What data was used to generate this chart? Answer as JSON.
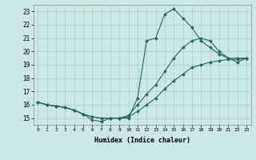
{
  "xlabel": "Humidex (Indice chaleur)",
  "background_color": "#cce8e4",
  "grid_color": "#aaccc8",
  "line_color": "#206860",
  "xlim": [
    -0.5,
    23.5
  ],
  "ylim": [
    14.5,
    23.5
  ],
  "yticks": [
    15,
    16,
    17,
    18,
    19,
    20,
    21,
    22,
    23
  ],
  "xticks": [
    0,
    1,
    2,
    3,
    4,
    5,
    6,
    7,
    8,
    9,
    10,
    11,
    12,
    13,
    14,
    15,
    16,
    17,
    18,
    19,
    20,
    21,
    22,
    23
  ],
  "line1_x": [
    0,
    1,
    2,
    3,
    4,
    5,
    6,
    7,
    8,
    9,
    10,
    11,
    12,
    13,
    14,
    15,
    16,
    17,
    18,
    19,
    20,
    21,
    22,
    23
  ],
  "line1_y": [
    16.2,
    16.0,
    15.9,
    15.8,
    15.6,
    15.3,
    14.85,
    14.75,
    15.0,
    15.0,
    15.0,
    16.5,
    20.8,
    21.0,
    22.8,
    23.2,
    22.5,
    21.8,
    20.8,
    20.3,
    19.8,
    19.5,
    19.5,
    19.5
  ],
  "line2_x": [
    0,
    1,
    2,
    3,
    4,
    5,
    6,
    7,
    8,
    9,
    10,
    11,
    12,
    13,
    14,
    15,
    16,
    17,
    18,
    19,
    20,
    21,
    22,
    23
  ],
  "line2_y": [
    16.2,
    16.0,
    15.9,
    15.8,
    15.6,
    15.3,
    15.1,
    15.0,
    15.0,
    15.0,
    15.2,
    16.0,
    16.8,
    17.5,
    18.5,
    19.5,
    20.3,
    20.8,
    21.0,
    20.8,
    20.0,
    19.5,
    19.2,
    19.5
  ],
  "line3_x": [
    0,
    1,
    2,
    3,
    4,
    5,
    6,
    7,
    8,
    9,
    10,
    11,
    12,
    13,
    14,
    15,
    16,
    17,
    18,
    19,
    20,
    21,
    22,
    23
  ],
  "line3_y": [
    16.2,
    16.0,
    15.9,
    15.8,
    15.6,
    15.3,
    15.1,
    15.0,
    15.0,
    15.0,
    15.1,
    15.5,
    16.0,
    16.5,
    17.2,
    17.8,
    18.3,
    18.8,
    19.0,
    19.2,
    19.3,
    19.4,
    19.4,
    19.5
  ]
}
